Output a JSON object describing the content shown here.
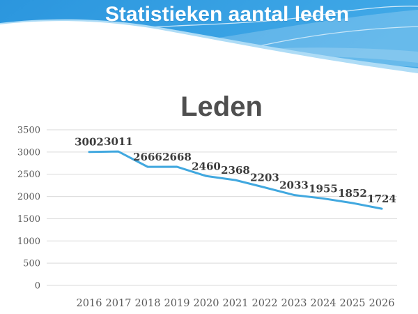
{
  "slide": {
    "header": {
      "title": "Statistieken aantal leden"
    },
    "colors": {
      "header_blue_start": "#2B96DE",
      "header_blue_end": "#41A9E7",
      "header_feather_blue": "#AEDCF6",
      "header_text": "#FFFFFF",
      "background": "#FFFFFF"
    }
  },
  "chart_data": {
    "type": "line",
    "title": "Leden",
    "categories": [
      "2016",
      "2017",
      "2018",
      "2019",
      "2020",
      "2021",
      "2022",
      "2023",
      "2024",
      "2025",
      "2026"
    ],
    "series": [
      {
        "name": "Leden",
        "values": [
          3002,
          3011,
          2666,
          2668,
          2460,
          2368,
          2203,
          2033,
          1955,
          1852,
          1724
        ]
      }
    ],
    "data_labels": true,
    "xlabel": "",
    "ylabel": "",
    "ylim": [
      0,
      3500
    ],
    "ytick_step": 500,
    "grid": true,
    "legend": "none",
    "line_color": "#41A8DF",
    "grid_color": "#D9D9D9",
    "tick_label_color": "#595959",
    "data_label_color": "#3B3B3B",
    "title_color": "#4F4F4F"
  }
}
